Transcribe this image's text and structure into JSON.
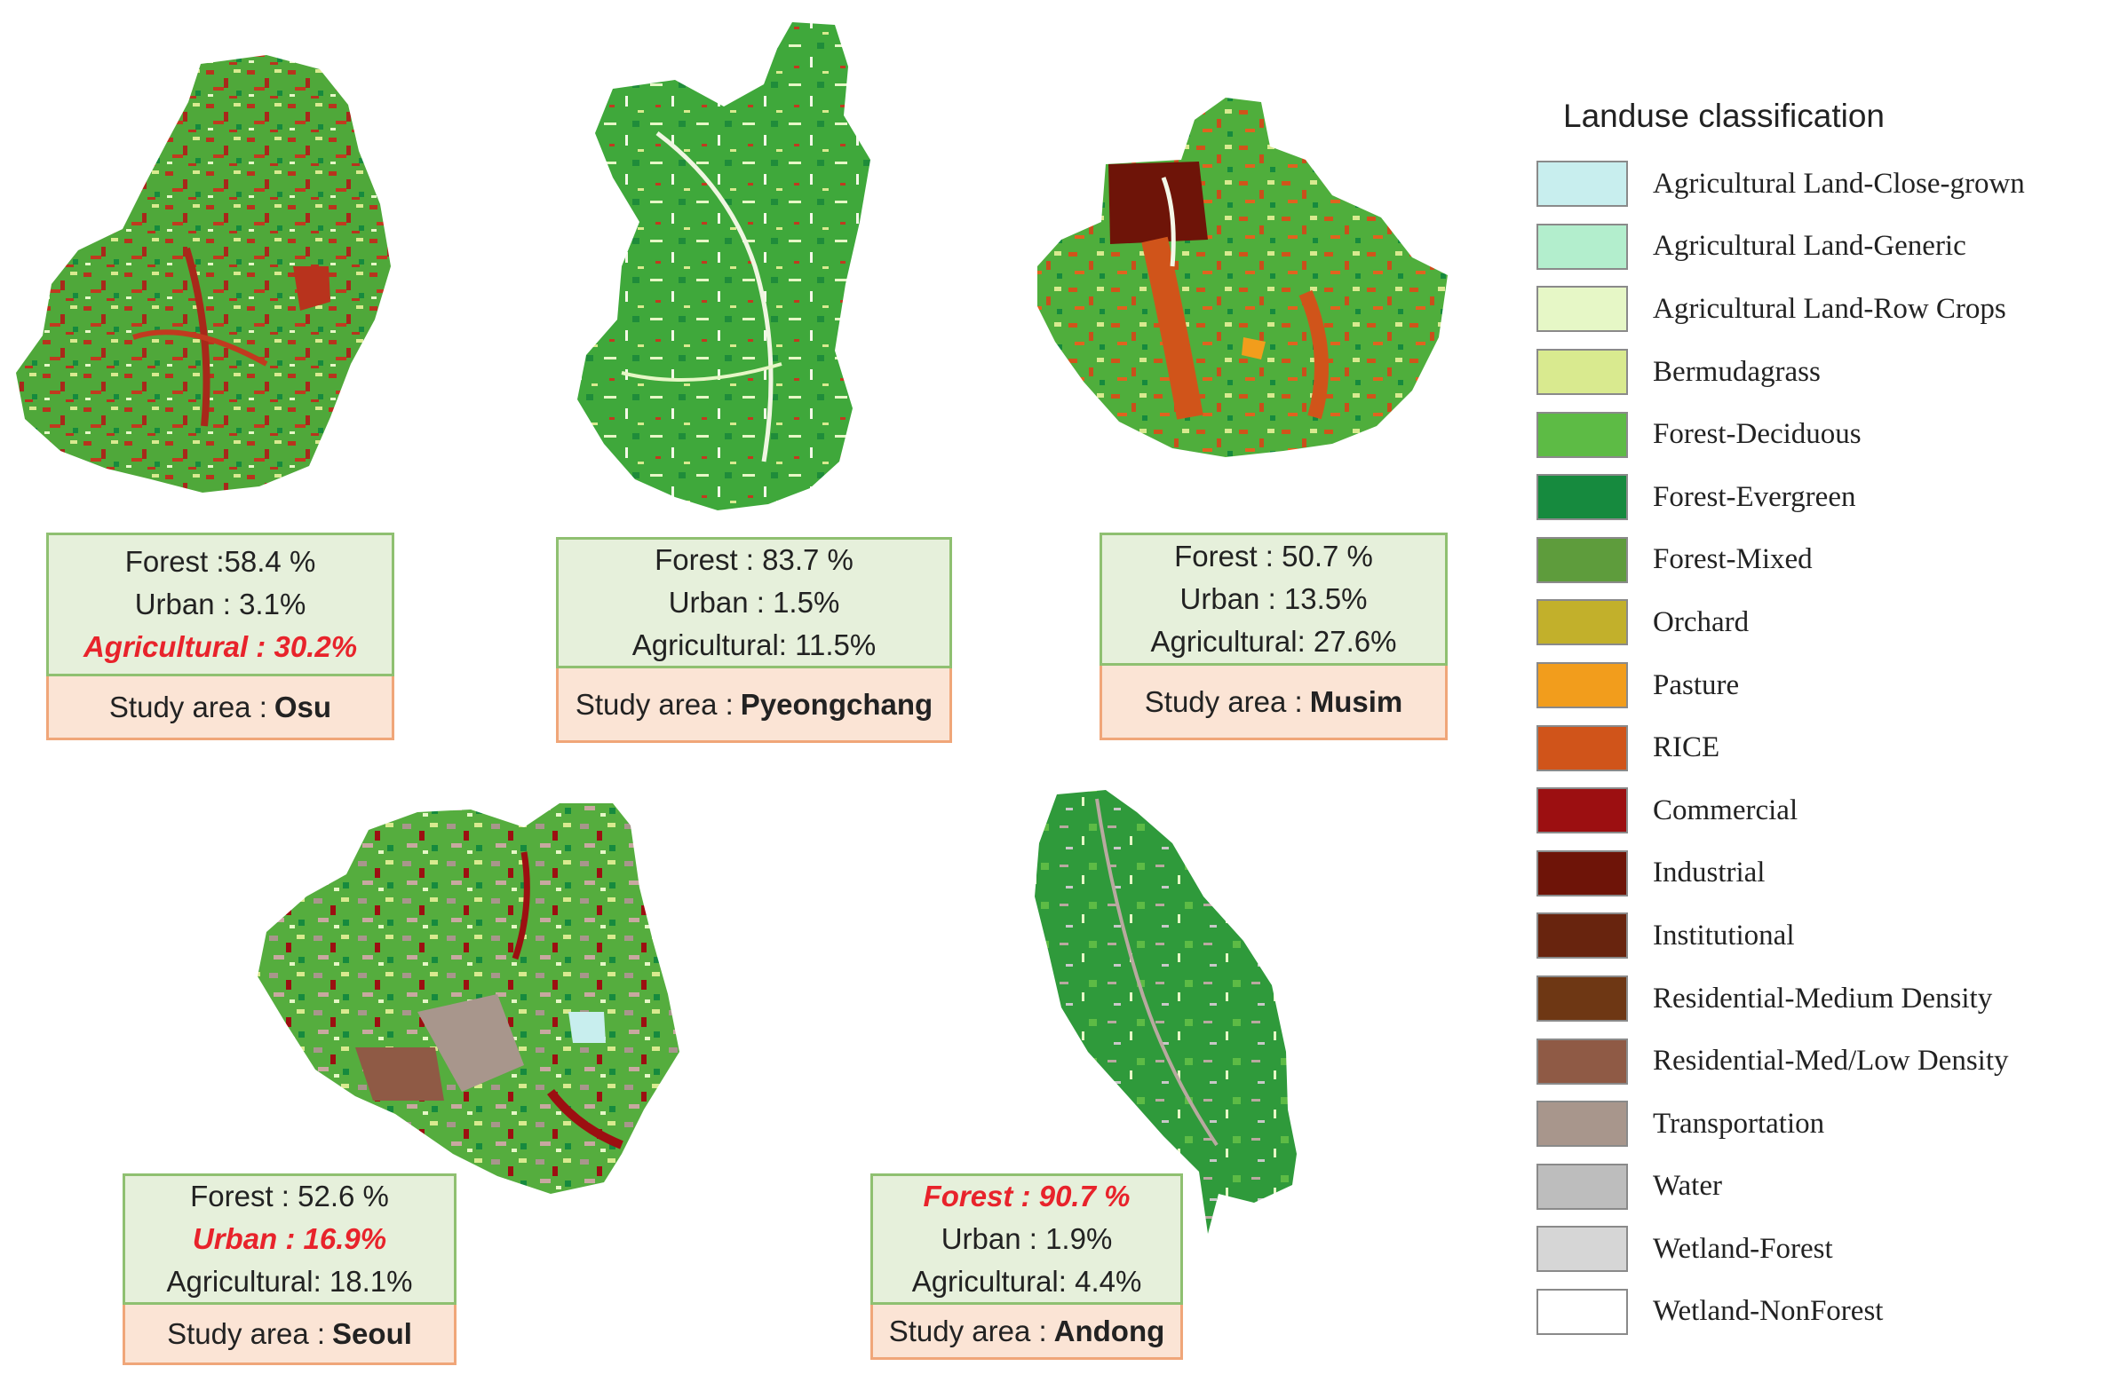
{
  "legend": {
    "title": "Landuse classification",
    "items": [
      {
        "label": "Agricultural Land-Close-grown",
        "color": "#c8eeee"
      },
      {
        "label": "Agricultural  Land-Generic",
        "color": "#b3eecd"
      },
      {
        "label": "Agricultural  Land-Row Crops",
        "color": "#e6f7c6"
      },
      {
        "label": "Bermudagrass",
        "color": "#d9ea8f"
      },
      {
        "label": "Forest-Deciduous",
        "color": "#5dbb45"
      },
      {
        "label": "Forest-Evergreen",
        "color": "#168a3e"
      },
      {
        "label": "Forest-Mixed",
        "color": "#5e9c3c"
      },
      {
        "label": "Orchard",
        "color": "#c2b02b"
      },
      {
        "label": "Pasture",
        "color": "#f29d1c"
      },
      {
        "label": "RICE",
        "color": "#d0541a"
      },
      {
        "label": "Commercial",
        "color": "#9c0f11"
      },
      {
        "label": "Industrial",
        "color": "#6e1408"
      },
      {
        "label": "Institutional",
        "color": "#68240e"
      },
      {
        "label": "Residential-Medium  Density",
        "color": "#6e3714"
      },
      {
        "label": "Residential-Med/Low  Density",
        "color": "#8f5a45"
      },
      {
        "label": "Transportation",
        "color": "#a8968c"
      },
      {
        "label": "Water",
        "color": "#bdbdbd"
      },
      {
        "label": "Wetland-Forest",
        "color": "#d6d6d6"
      },
      {
        "label": "Wetland-NonForest",
        "color": "#ffffff"
      }
    ]
  },
  "study_areas": [
    {
      "forest": "Forest :58.4 %",
      "urban": "Urban : 3.1%",
      "agricultural": "Agricultural : 30.2%",
      "area_label": "Study area :",
      "area_name": "Osu",
      "highlight": "agricultural"
    },
    {
      "forest": "Forest : 83.7 %",
      "urban": "Urban : 1.5%",
      "agricultural": "Agricultural: 11.5%",
      "area_label": "Study area :",
      "area_name": "Pyeongchang",
      "highlight": "none"
    },
    {
      "forest": "Forest : 50.7 %",
      "urban": "Urban : 13.5%",
      "agricultural": "Agricultural: 27.6%",
      "area_label": "Study area :",
      "area_name": "Musim",
      "highlight": "none"
    },
    {
      "forest": "Forest : 52.6 %",
      "urban": "Urban : 16.9%",
      "agricultural": "Agricultural: 18.1%",
      "area_label": "Study area :",
      "area_name": "Seoul",
      "highlight": "urban"
    },
    {
      "forest": "Forest : 90.7 %",
      "urban": "Urban : 1.9%",
      "agricultural": "Agricultural: 4.4%",
      "area_label": "Study area :",
      "area_name": "Andong",
      "highlight": "forest"
    }
  ]
}
